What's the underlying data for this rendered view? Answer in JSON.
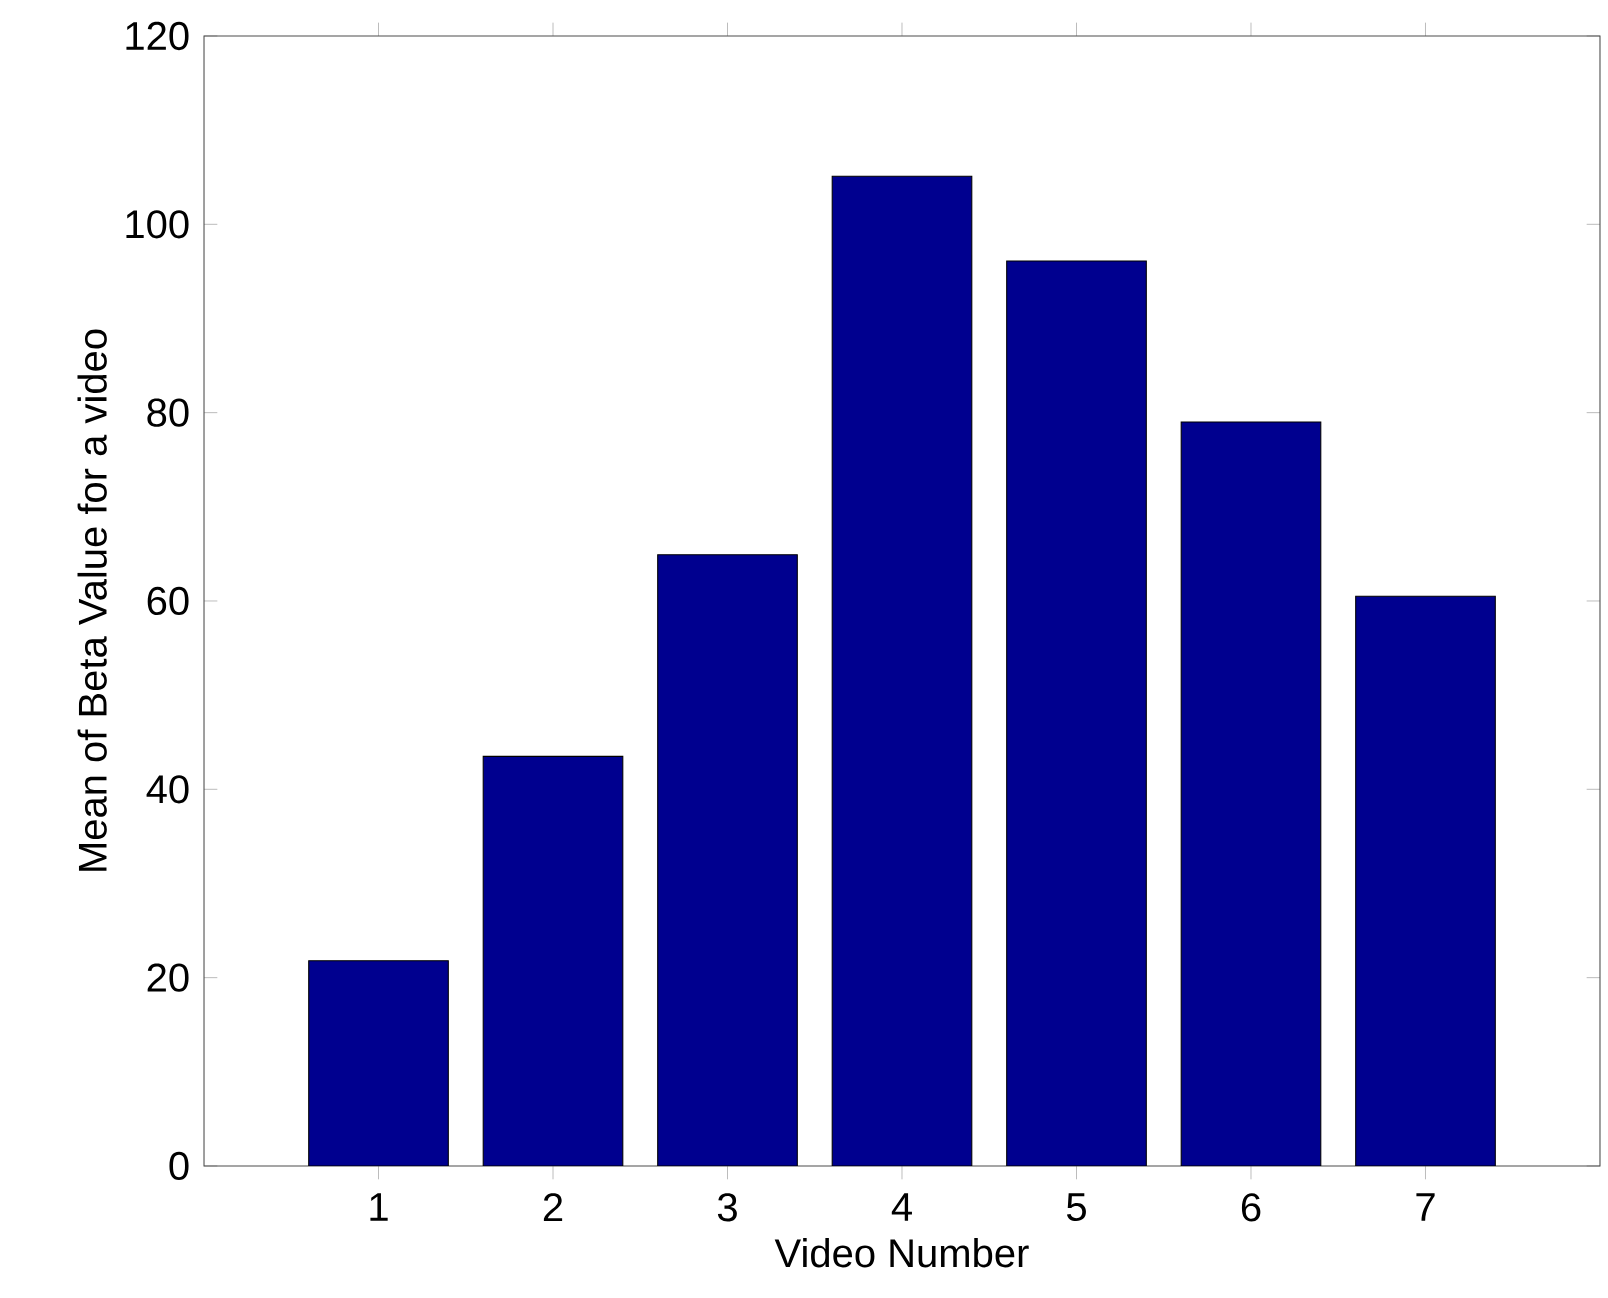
{
  "chart_data": {
    "type": "bar",
    "xlabel": "Video Number",
    "ylabel": "Mean of Beta Value for a video",
    "categories": [
      "1",
      "2",
      "3",
      "4",
      "5",
      "6",
      "7"
    ],
    "values": [
      21.8,
      43.5,
      64.9,
      105.1,
      96.1,
      79.0,
      60.5
    ],
    "color": "#00008f",
    "ylim": [
      0,
      120
    ],
    "yticks": [
      0,
      20,
      40,
      60,
      80,
      100,
      120
    ]
  }
}
